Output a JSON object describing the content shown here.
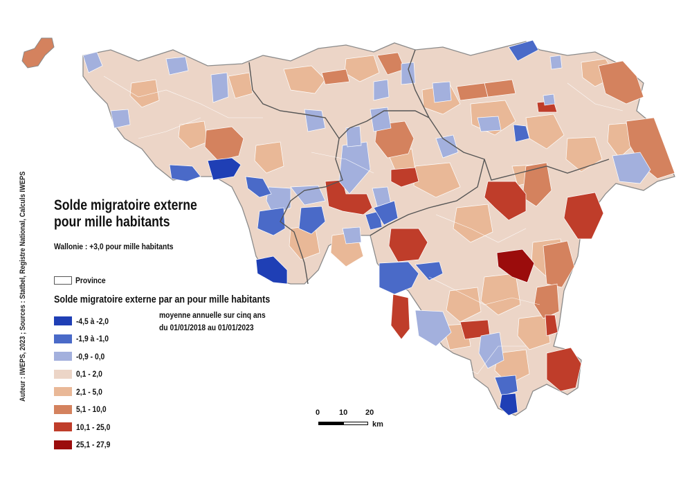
{
  "map": {
    "title_line1": "Solde migratoire externe",
    "title_line2": "pour mille habitants",
    "subtitle": "Wallonie : +3,0 pour mille habitants",
    "province_label": "Province",
    "legend_title": "Solde migratoire externe par an pour mille habitants",
    "legend_note_line1": "moyenne annuelle sur cinq ans",
    "legend_note_line2": "du 01/01/2018 au 01/01/2023",
    "legend": [
      {
        "label": "-4,5 à -2,0",
        "color": "#1f3fb5"
      },
      {
        "label": "-1,9 à -1,0",
        "color": "#4a6ac8"
      },
      {
        "label": "-0,9 - 0,0",
        "color": "#a3b0dd"
      },
      {
        "label": "0,1 - 2,0",
        "color": "#ecd5c7"
      },
      {
        "label": "2,1 - 5,0",
        "color": "#e9b897"
      },
      {
        "label": "5,1 - 10,0",
        "color": "#d4825e"
      },
      {
        "label": "10,1 - 25,0",
        "color": "#bf3d2a"
      },
      {
        "label": "25,1 - 27,9",
        "color": "#9b0c0c"
      }
    ],
    "credits": "Auteur : IWEPS, 2023 ; Sources : Statbel, Registre National, Calculs IWEPS",
    "scale": {
      "ticks": [
        "0",
        "10",
        "20"
      ],
      "unit": "km"
    }
  }
}
